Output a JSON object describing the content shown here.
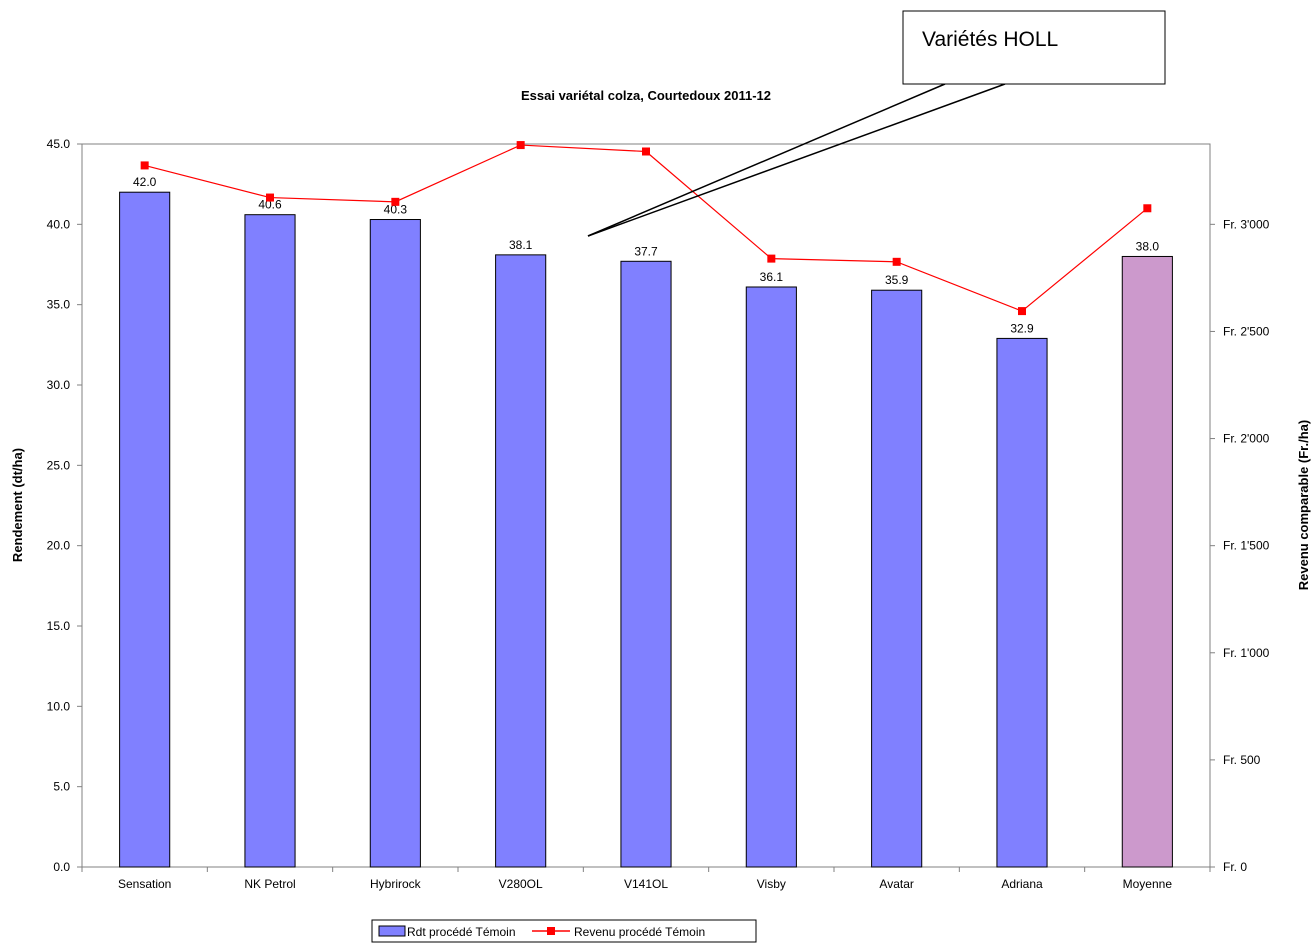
{
  "chart_data": {
    "type": "bar",
    "title": "Essai variétal colza, Courtedoux 2011-12",
    "ylabel": "Rendement (dt/ha)",
    "y2label": "Revenu comparable (Fr./ha)",
    "xlabel": "",
    "categories": [
      "Sensation",
      "NK Petrol",
      "Hybrirock",
      "V280OL",
      "V141OL",
      "Visby",
      "Avatar",
      "Adriana",
      "Moyenne"
    ],
    "ylim": [
      0,
      45
    ],
    "y_ticks": [
      "0.0",
      "5.0",
      "10.0",
      "15.0",
      "20.0",
      "25.0",
      "30.0",
      "35.0",
      "40.0",
      "45.0"
    ],
    "y2lim": [
      0,
      3375
    ],
    "y2_ticks": [
      "Fr. 0",
      "Fr. 500",
      "Fr. 1'000",
      "Fr. 1'500",
      "Fr. 2'000",
      "Fr. 2'500",
      "Fr. 3'000"
    ],
    "grid": false,
    "legend_position": "bottom",
    "series": [
      {
        "name": "Rdt procédé Témoin",
        "kind": "bar",
        "axis": "left",
        "values": [
          42.0,
          40.6,
          40.3,
          38.1,
          37.7,
          36.1,
          35.9,
          32.9,
          38.0
        ],
        "labels": [
          "42.0",
          "40.6",
          "40.3",
          "38.1",
          "37.7",
          "36.1",
          "35.9",
          "32.9",
          "38.0"
        ],
        "color": "#8080ff",
        "highlight_color": "#cc99cc",
        "highlight_index": 8
      },
      {
        "name": "Revenu procédé Témoin",
        "kind": "line",
        "axis": "right",
        "values": [
          3275,
          3125,
          3105,
          3370,
          3340,
          2840,
          2825,
          2595,
          3075
        ],
        "color": "#ff0000"
      }
    ],
    "annotation": {
      "text": "Variétés HOLL",
      "points_to": [
        "V280OL",
        "V141OL"
      ]
    }
  }
}
